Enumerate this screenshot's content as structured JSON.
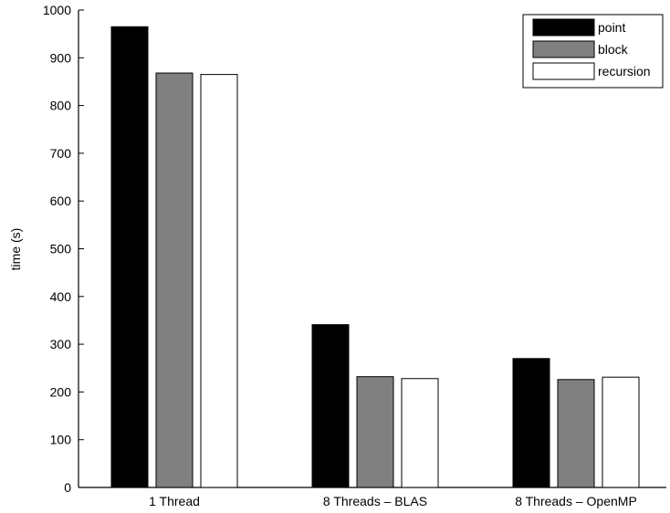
{
  "chart_data": {
    "type": "bar",
    "title": "",
    "xlabel": "",
    "ylabel": "time (s)",
    "ylim": [
      0,
      1000
    ],
    "yticks": [
      0,
      100,
      200,
      300,
      400,
      500,
      600,
      700,
      800,
      900,
      1000
    ],
    "categories": [
      "1 Thread",
      "8 Threads – BLAS",
      "8 Threads – OpenMP"
    ],
    "series": [
      {
        "name": "point",
        "values": [
          965,
          341,
          270
        ],
        "color": "#000000"
      },
      {
        "name": "block",
        "values": [
          868,
          232,
          226
        ],
        "color": "#808080"
      },
      {
        "name": "recursion",
        "values": [
          865,
          228,
          231
        ],
        "color": "#ffffff"
      }
    ],
    "grid": false,
    "legend_position": "top-right"
  }
}
